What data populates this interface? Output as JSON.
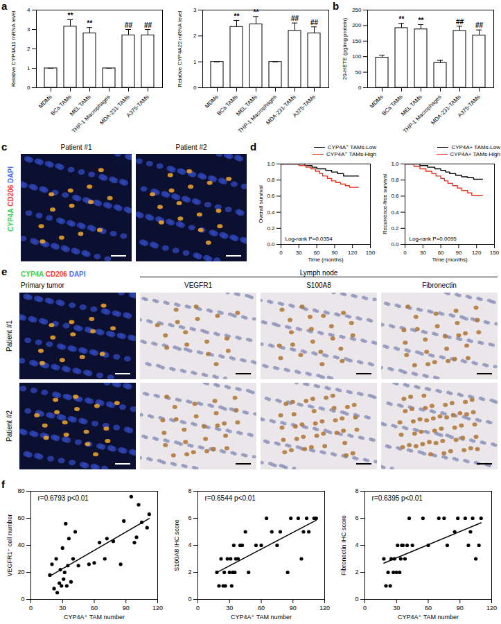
{
  "chart_data": [
    {
      "type": "bar",
      "panel": "a",
      "y_label": "Relative CYP4A11 mRNA level",
      "categories": [
        "MDMs",
        "BCa TAMs",
        "MEL TAMs",
        "THP-1 Macrophages",
        "MDA-231-TAMs",
        "A375-TAMs"
      ],
      "values": [
        1,
        3.15,
        2.8,
        1,
        2.7,
        2.7
      ],
      "errors": [
        0,
        0.35,
        0.3,
        0,
        0.3,
        0.3
      ],
      "annotations": [
        null,
        "**",
        "**",
        null,
        "##",
        "##"
      ],
      "color": "#ffffff",
      "ylim": [
        0,
        4
      ],
      "yticks": [
        0,
        1,
        2,
        3,
        4
      ]
    },
    {
      "type": "bar",
      "y_label": "Relative CYP4A22 mRNA level",
      "categories": [
        "MDMs",
        "BCa TAMs",
        "MEL TAMs",
        "THP-1 Macrophages",
        "MDA-231-TAMs",
        "A375-TAMs"
      ],
      "values": [
        1,
        2.35,
        2.45,
        1,
        2.2,
        2.1
      ],
      "errors": [
        0,
        0.25,
        0.3,
        0,
        0.3,
        0.25
      ],
      "annotations": [
        null,
        "**",
        "**",
        null,
        "##",
        "##"
      ],
      "color": "#ffffff",
      "ylim": [
        0,
        3
      ],
      "yticks": [
        0,
        1,
        2,
        3
      ]
    },
    {
      "type": "bar",
      "panel": "b",
      "y_label": "20-HETE (pg/mg protein)",
      "categories": [
        "MDMs",
        "BCa TAMs",
        "MEL TAMs",
        "THP-1 Macrophages",
        "MDA-231-TAMs",
        "A375-TAMs"
      ],
      "values": [
        97,
        192,
        188,
        80,
        183,
        168
      ],
      "errors": [
        8,
        15,
        15,
        8,
        15,
        18
      ],
      "annotations": [
        null,
        "**",
        "**",
        null,
        "##",
        "##"
      ],
      "color": "#ffffff",
      "ylim": [
        0,
        250
      ],
      "yticks": [
        0,
        50,
        100,
        150,
        200,
        250
      ]
    },
    {
      "type": "line",
      "panel": "d",
      "line_style": "step",
      "x_label": "Time (months)",
      "y_label": "Overall survival",
      "annotation": "Log-rank P=0.0354",
      "series": [
        {
          "name": "CYP4A⁺ TAMs-Low",
          "color": "#000000",
          "x": [
            0,
            40,
            52,
            60,
            75,
            85,
            95,
            105,
            130
          ],
          "values": [
            1,
            0.98,
            0.96,
            0.94,
            0.92,
            0.9,
            0.88,
            0.85,
            0.85
          ]
        },
        {
          "name": "CYP4A⁺ TAMs-High",
          "color": "#e8321e",
          "x": [
            0,
            30,
            42,
            50,
            58,
            65,
            70,
            78,
            85,
            92,
            100,
            108,
            115,
            130
          ],
          "values": [
            1,
            0.98,
            0.96,
            0.94,
            0.91,
            0.88,
            0.85,
            0.82,
            0.79,
            0.77,
            0.75,
            0.73,
            0.71,
            0.71
          ]
        }
      ],
      "xlim": [
        0,
        150
      ],
      "xticks": [
        0,
        30,
        60,
        90,
        120,
        150
      ],
      "ylim": [
        0,
        1
      ],
      "yticks": [
        {
          "value": 0,
          "label": "0.0"
        },
        0.2,
        0.4,
        0.6,
        0.8,
        {
          "value": 1,
          "label": "1.0"
        }
      ]
    },
    {
      "type": "line",
      "line_style": "step",
      "x_label": "Time (months)",
      "y_label": "Recurrence-free survival",
      "annotation": "Log-rank P=0.0095",
      "series": [
        {
          "name": "CYP4A+ TAMs-Low",
          "color": "#000000",
          "x": [
            0,
            25,
            38,
            50,
            60,
            68,
            75,
            85,
            95,
            105,
            115,
            130
          ],
          "values": [
            1,
            0.98,
            0.96,
            0.94,
            0.92,
            0.9,
            0.88,
            0.86,
            0.84,
            0.83,
            0.81,
            0.81
          ]
        },
        {
          "name": "CYP4A+ TAMs-High",
          "color": "#e8321e",
          "x": [
            0,
            15,
            25,
            35,
            45,
            52,
            60,
            66,
            72,
            80,
            88,
            95,
            105,
            112,
            130
          ],
          "values": [
            1,
            0.97,
            0.94,
            0.91,
            0.88,
            0.85,
            0.82,
            0.79,
            0.76,
            0.73,
            0.7,
            0.67,
            0.64,
            0.61,
            0.61
          ]
        }
      ],
      "xlim": [
        0,
        150
      ],
      "xticks": [
        0,
        30,
        60,
        90,
        120,
        150
      ],
      "ylim": [
        0,
        1
      ],
      "yticks": [
        {
          "value": 0,
          "label": "0.0"
        },
        0.2,
        0.4,
        0.6,
        0.8,
        {
          "value": 1,
          "label": "1.0"
        }
      ]
    },
    {
      "type": "scatter",
      "panel": "f",
      "x_label": "CYP4A⁺ TAM number",
      "y_label": "VEGFR1⁺ cell number",
      "annotation": "r=0.6793 p<0.01",
      "color": "#000000",
      "x": [
        18,
        20,
        22,
        24,
        25,
        27,
        28,
        29,
        30,
        31,
        32,
        33,
        34,
        35,
        36,
        38,
        40,
        42,
        45,
        55,
        60,
        65,
        70,
        72,
        78,
        85,
        88,
        95,
        98,
        100,
        102,
        105,
        110,
        112
      ],
      "values": [
        18,
        26,
        8,
        30,
        5,
        12,
        22,
        10,
        38,
        15,
        20,
        56,
        10,
        25,
        45,
        13,
        30,
        50,
        25,
        26,
        27,
        42,
        30,
        45,
        43,
        26,
        58,
        76,
        42,
        46,
        70,
        57,
        53,
        63
      ],
      "xlim": [
        0,
        120
      ],
      "xticks": [
        0,
        30,
        60,
        90,
        120
      ],
      "ylim": [
        0,
        80
      ],
      "yticks": [
        0,
        20,
        40,
        60,
        80
      ]
    },
    {
      "type": "scatter",
      "x_label": "CYP4A⁺ TAM number",
      "y_label": "S100A8 IHC score",
      "annotation": "r=0.6544 p<0.01",
      "color": "#000000",
      "x": [
        18,
        20,
        22,
        24,
        25,
        26,
        28,
        30,
        31,
        32,
        33,
        34,
        35,
        36,
        38,
        40,
        42,
        45,
        48,
        55,
        60,
        65,
        70,
        75,
        78,
        85,
        88,
        95,
        98,
        100,
        103,
        105,
        110,
        112
      ],
      "values": [
        2,
        1,
        3,
        1,
        2,
        1,
        3,
        2,
        3,
        1,
        2,
        4,
        2,
        3,
        3,
        4,
        4,
        5,
        2,
        4,
        4,
        6,
        5,
        4,
        5,
        2,
        6,
        6,
        3,
        5,
        6,
        5,
        6,
        6
      ],
      "xlim": [
        0,
        120
      ],
      "xticks": [
        0,
        30,
        60,
        90,
        120
      ],
      "ylim": [
        0,
        8
      ],
      "yticks": [
        0,
        2,
        4,
        6,
        8
      ]
    },
    {
      "type": "scatter",
      "x_label": "CYP4A⁺ TAM number",
      "y_label": "Fibronectin IHC score",
      "annotation": "r=0.6395 p<0.01",
      "color": "#000000",
      "x": [
        18,
        20,
        22,
        24,
        25,
        27,
        28,
        30,
        31,
        33,
        34,
        35,
        36,
        38,
        40,
        42,
        45,
        55,
        60,
        70,
        75,
        78,
        85,
        88,
        95,
        98,
        100,
        102,
        105,
        108,
        110
      ],
      "values": [
        3,
        1,
        2,
        1,
        3,
        2,
        3,
        2,
        4,
        2,
        3,
        4,
        4,
        3,
        4,
        6,
        4,
        6,
        4,
        6,
        6,
        4,
        5,
        6,
        6,
        4,
        5,
        6,
        3,
        4,
        6
      ],
      "xlim": [
        0,
        120
      ],
      "xticks": [
        0,
        30,
        60,
        90,
        120
      ],
      "ylim": [
        0,
        8
      ],
      "yticks": [
        0,
        2,
        4,
        6,
        8
      ]
    }
  ],
  "images": [
    {
      "panel": "c",
      "stains": [
        {
          "text": "CYP4A",
          "color": "#39d353"
        },
        {
          "text": "CD206",
          "color": "#ff3b30"
        },
        {
          "text": "DAPI",
          "color": "#4a6cff"
        }
      ],
      "titles": [
        "Patient #1",
        "Patient #2"
      ]
    },
    {
      "panel": "e",
      "stains": [
        {
          "text": "CYP4A",
          "color": "#39d353"
        },
        {
          "text": "CD206",
          "color": "#ff3b30"
        },
        {
          "text": "DAPI",
          "color": "#4a6cff"
        }
      ],
      "group_label": "Lymph node",
      "columns": [
        "Primary tumor",
        "VEGFR1",
        "S100A8",
        "Fibronectin"
      ],
      "rows": [
        "Patient #1",
        "Patient #2"
      ]
    }
  ]
}
